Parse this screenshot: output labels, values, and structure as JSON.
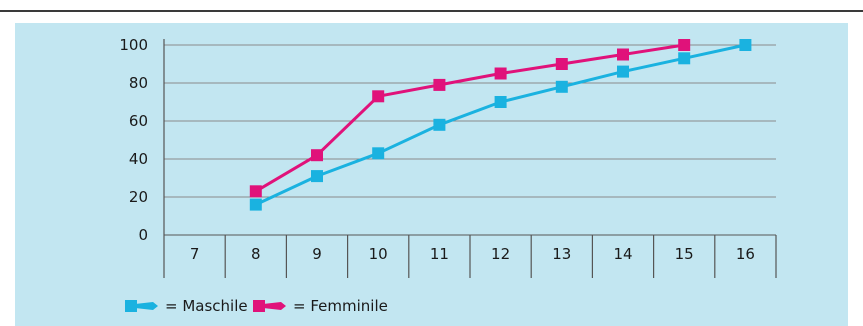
{
  "chart_data": {
    "type": "line",
    "x": [
      "7",
      "8",
      "9",
      "10",
      "11",
      "12",
      "13",
      "14",
      "15",
      "16"
    ],
    "series": [
      {
        "name": "= Maschile",
        "color": "#1ab2e0",
        "points": [
          {
            "x": "8",
            "y": 16
          },
          {
            "x": "9",
            "y": 31
          },
          {
            "x": "10",
            "y": 43
          },
          {
            "x": "11",
            "y": 58
          },
          {
            "x": "12",
            "y": 70
          },
          {
            "x": "13",
            "y": 78
          },
          {
            "x": "14",
            "y": 86
          },
          {
            "x": "15",
            "y": 93
          },
          {
            "x": "16",
            "y": 100
          }
        ]
      },
      {
        "name": "= Femminile",
        "color": "#e0127a",
        "points": [
          {
            "x": "8",
            "y": 23
          },
          {
            "x": "9",
            "y": 42
          },
          {
            "x": "10",
            "y": 73
          },
          {
            "x": "11",
            "y": 79
          },
          {
            "x": "12",
            "y": 85
          },
          {
            "x": "13",
            "y": 90
          },
          {
            "x": "14",
            "y": 95
          },
          {
            "x": "15",
            "y": 100
          }
        ]
      }
    ],
    "y_ticks": [
      "0",
      "20",
      "40",
      "60",
      "80",
      "100"
    ],
    "ylim": [
      0,
      100
    ],
    "grid": "horizontal",
    "legend": "bottom-left",
    "title": "",
    "xlabel": "",
    "ylabel": ""
  }
}
